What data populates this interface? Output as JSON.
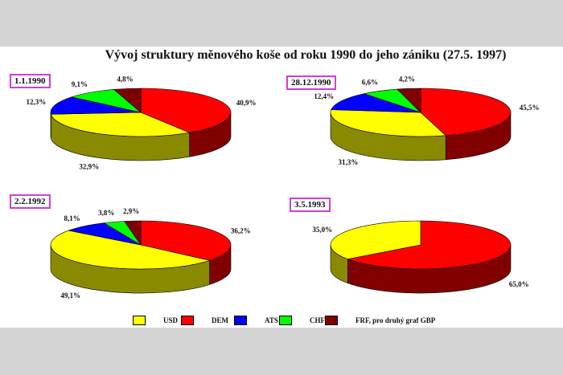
{
  "title": "Vývoj struktury měnového koše od roku 1990 do jeho zániku (27.5. 1997)",
  "colors": {
    "USD": "#ffff00",
    "DEM": "#ff0000",
    "ATS": "#0000ff",
    "CHF": "#00ff00",
    "FRF_GBP": "#800000",
    "USD_side": "#8a8a00",
    "DEM_side": "#800000",
    "ATS_side": "#000080",
    "CHF_side": "#008000",
    "FRF_GBP_side": "#400000"
  },
  "legend": [
    {
      "key": "USD",
      "label": "USD"
    },
    {
      "key": "DEM",
      "label": "DEM"
    },
    {
      "key": "ATS",
      "label": "ATS"
    },
    {
      "key": "CHF",
      "label": "CHF"
    },
    {
      "key": "FRF_GBP",
      "label": "FRF, pro druhý graf GBP"
    }
  ],
  "chart_data": [
    {
      "type": "pie",
      "title": "1.1.1990",
      "series": [
        {
          "key": "DEM",
          "value": 40.9,
          "label": "40,9%"
        },
        {
          "key": "USD",
          "value": 32.9,
          "label": "32,9%"
        },
        {
          "key": "ATS",
          "value": 12.3,
          "label": "12,3%"
        },
        {
          "key": "CHF",
          "value": 9.1,
          "label": "9,1%"
        },
        {
          "key": "FRF_GBP",
          "value": 4.8,
          "label": "4,8%"
        }
      ]
    },
    {
      "type": "pie",
      "title": "28.12.1990",
      "series": [
        {
          "key": "DEM",
          "value": 45.5,
          "label": "45,5%"
        },
        {
          "key": "USD",
          "value": 31.3,
          "label": "31,3%"
        },
        {
          "key": "ATS",
          "value": 12.4,
          "label": "12,4%"
        },
        {
          "key": "CHF",
          "value": 6.6,
          "label": "6,6%"
        },
        {
          "key": "FRF_GBP",
          "value": 4.2,
          "label": "4,2%"
        }
      ]
    },
    {
      "type": "pie",
      "title": "2.2.1992",
      "series": [
        {
          "key": "DEM",
          "value": 36.2,
          "label": "36,2%"
        },
        {
          "key": "USD",
          "value": 49.1,
          "label": "49,1%"
        },
        {
          "key": "ATS",
          "value": 8.1,
          "label": "8,1%"
        },
        {
          "key": "CHF",
          "value": 3.8,
          "label": "3,8%"
        },
        {
          "key": "FRF_GBP",
          "value": 2.9,
          "label": "2,9%"
        }
      ]
    },
    {
      "type": "pie",
      "title": "3.5.1993",
      "series": [
        {
          "key": "DEM",
          "value": 65.0,
          "label": "65,0%"
        },
        {
          "key": "USD",
          "value": 35.0,
          "label": "35,0%"
        }
      ]
    }
  ]
}
